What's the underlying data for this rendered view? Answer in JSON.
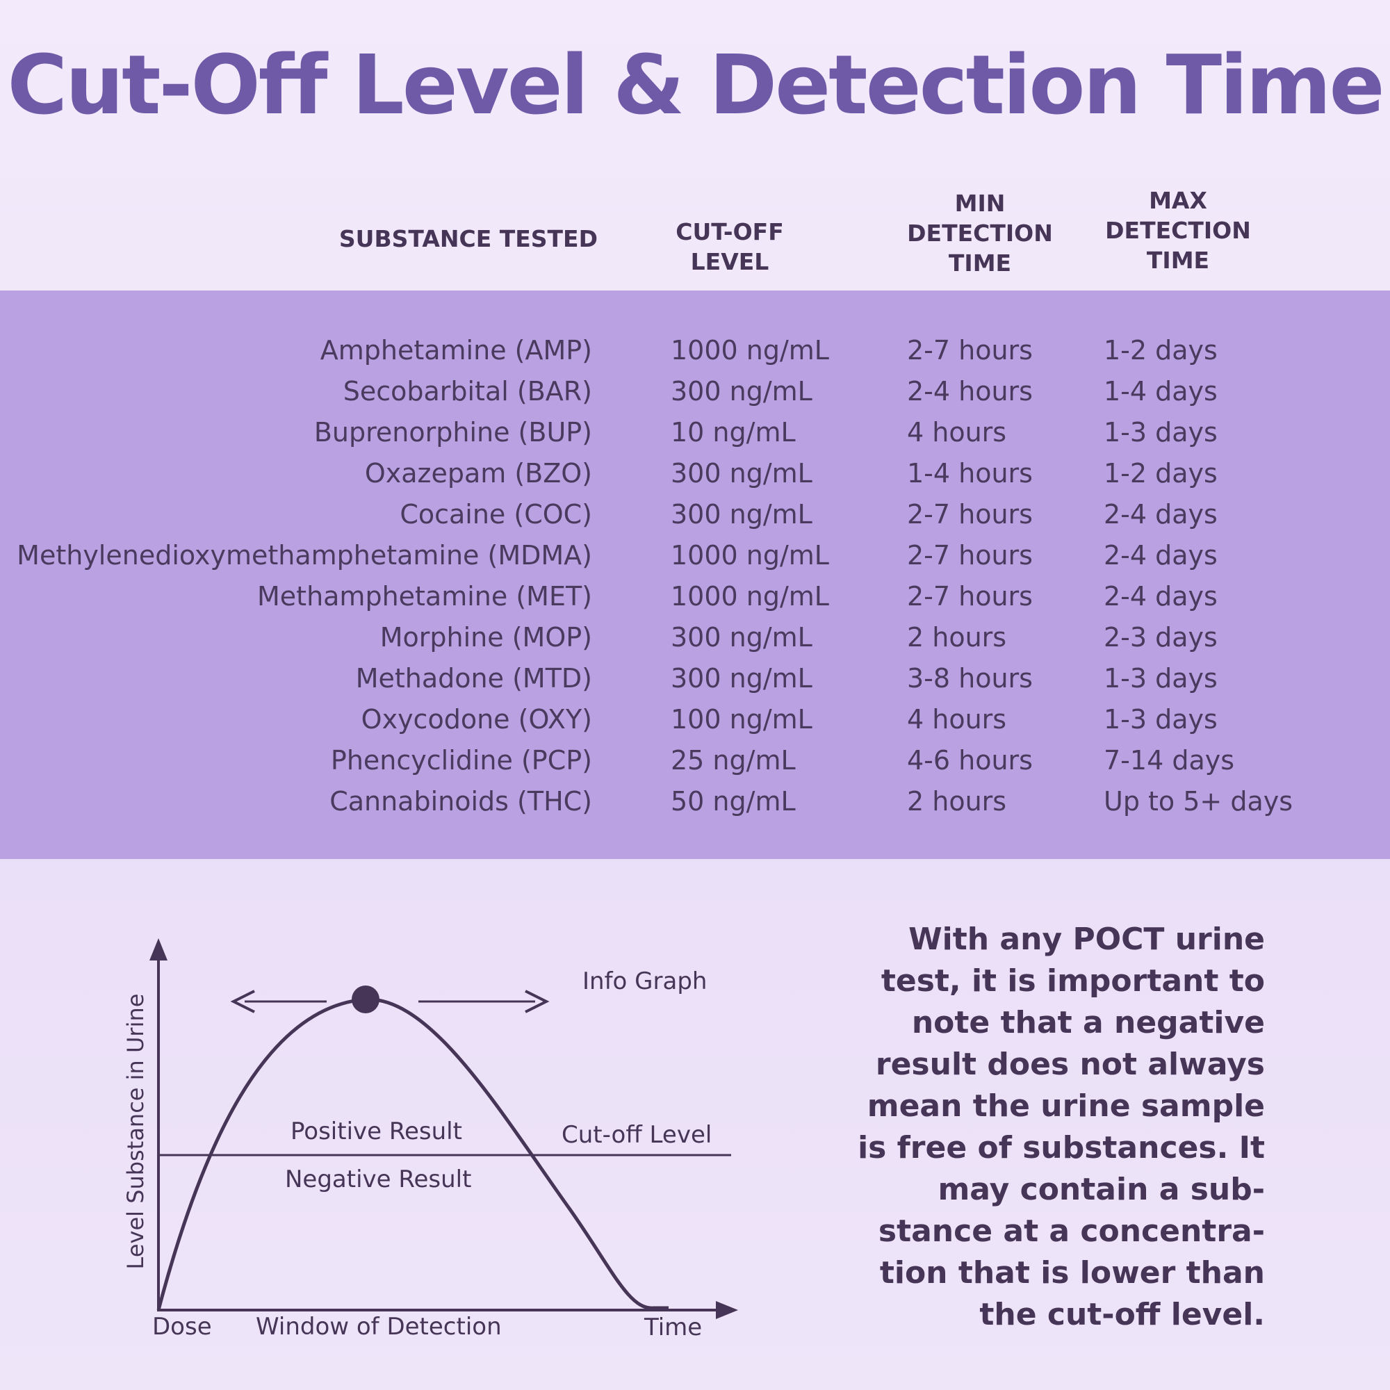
{
  "title": "Cut-Off Level & Detection Time",
  "table": {
    "headers": {
      "substance": "SUBSTANCE TESTED",
      "cutoff_line1": "CUT-OFF",
      "cutoff_line2": "LEVEL",
      "min_line1": "MIN",
      "min_line2": "DETECTION",
      "min_line3": "TIME",
      "max_line1": "MAX",
      "max_line2": "DETECTION",
      "max_line3": "TIME"
    },
    "rows": [
      {
        "substance": "Amphetamine (AMP)",
        "cutoff": "1000 ng/mL",
        "min": "2-7 hours",
        "max": "1-2 days"
      },
      {
        "substance": "Secobarbital (BAR)",
        "cutoff": "300 ng/mL",
        "min": "2-4 hours",
        "max": "1-4 days"
      },
      {
        "substance": "Buprenorphine (BUP)",
        "cutoff": "10 ng/mL",
        "min": "4 hours",
        "max": "1-3 days"
      },
      {
        "substance": "Oxazepam (BZO)",
        "cutoff": "300 ng/mL",
        "min": "1-4 hours",
        "max": "1-2 days"
      },
      {
        "substance": "Cocaine (COC)",
        "cutoff": "300 ng/mL",
        "min": "2-7 hours",
        "max": "2-4 days"
      },
      {
        "substance": "Methylenedioxymethamphetamine (MDMA)",
        "cutoff": "1000 ng/mL",
        "min": "2-7 hours",
        "max": "2-4 days"
      },
      {
        "substance": "Methamphetamine (MET)",
        "cutoff": "1000 ng/mL",
        "min": "2-7 hours",
        "max": "2-4 days"
      },
      {
        "substance": "Morphine (MOP)",
        "cutoff": "300 ng/mL",
        "min": "2 hours",
        "max": "2-3 days"
      },
      {
        "substance": "Methadone (MTD)",
        "cutoff": "300 ng/mL",
        "min": "3-8 hours",
        "max": "1-3 days"
      },
      {
        "substance": "Oxycodone (OXY)",
        "cutoff": "100 ng/mL",
        "min": "4 hours",
        "max": "1-3 days"
      },
      {
        "substance": "Phencyclidine (PCP)",
        "cutoff": "25 ng/mL",
        "min": "4-6 hours",
        "max": "7-14 days"
      },
      {
        "substance": "Cannabinoids (THC)",
        "cutoff": "50 ng/mL",
        "min": "2 hours",
        "max": "Up to 5+ days"
      }
    ]
  },
  "graph": {
    "title": "Info Graph",
    "y_axis_label": "Level Substance in Urine",
    "x_start_label": "Dose",
    "x_window_label": "Window of Detection",
    "x_end_label": "Time",
    "positive_label": "Positive Result",
    "negative_label": "Negative Result",
    "cutoff_label": "Cut-off Level"
  },
  "note": "With any POCT urine test, it is important to note that a negative result does not always mean the urine sample is free of substances. It may contain a sub- stance at a concentra- tion that is lower than the cut-off level.",
  "colors": {
    "title": "#6f5aa8",
    "band": "#baa1e2",
    "text_dark": "#463556",
    "row_text": "#4a3a5e"
  }
}
